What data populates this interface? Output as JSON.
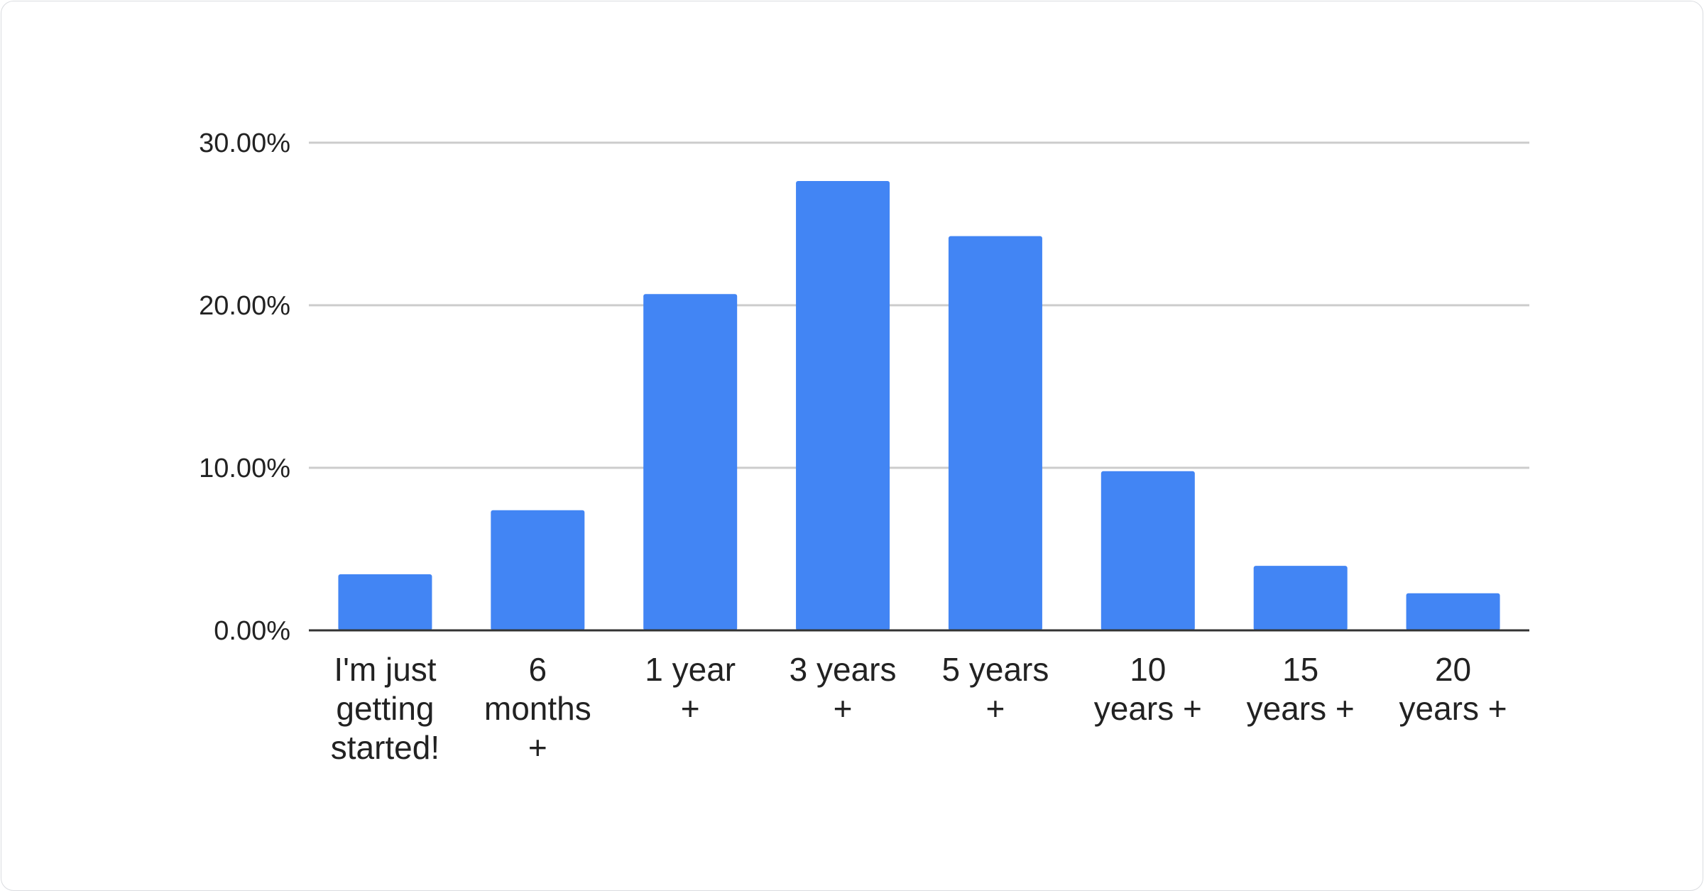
{
  "chart_data": {
    "type": "bar",
    "title": "",
    "xlabel": "",
    "ylabel": "",
    "categories": [
      [
        "I'm just",
        "getting",
        "started!"
      ],
      [
        "6",
        "months",
        "+"
      ],
      [
        "1 year",
        "+"
      ],
      [
        "3 years",
        "+"
      ],
      [
        "5 years",
        "+"
      ],
      [
        "10",
        "years +"
      ],
      [
        "15",
        "years +"
      ],
      [
        "20",
        "years +"
      ]
    ],
    "values": [
      3.45,
      7.39,
      20.69,
      27.64,
      24.25,
      9.79,
      3.97,
      2.28
    ],
    "value_unit": "%",
    "ylim": [
      0,
      30
    ],
    "yticks": [
      {
        "value": 0,
        "label": "0.00%"
      },
      {
        "value": 10,
        "label": "10.00%"
      },
      {
        "value": 20,
        "label": "20.00%"
      },
      {
        "value": 30,
        "label": "30.00%"
      }
    ],
    "grid": true,
    "legend": "none",
    "bar_color": "#4285f4",
    "grid_color": "#cccccc",
    "axis_color": "#333333"
  }
}
